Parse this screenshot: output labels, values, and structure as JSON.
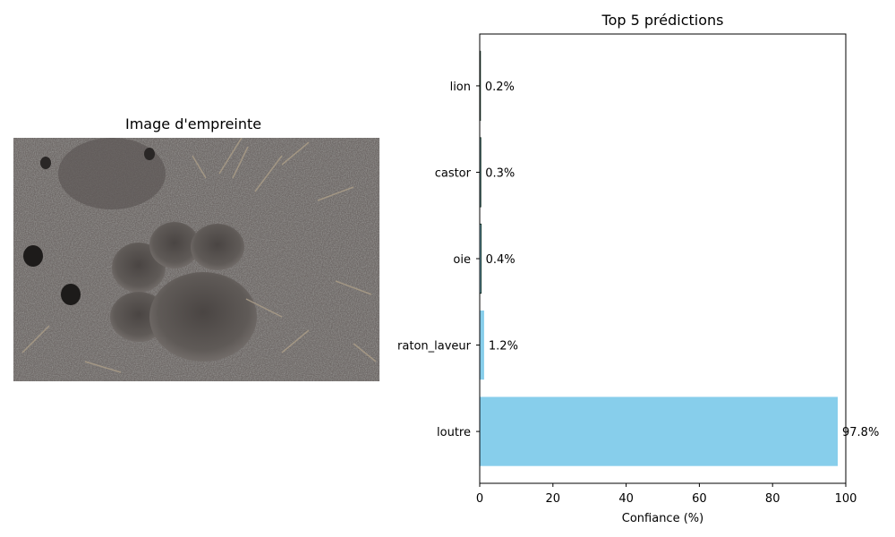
{
  "image_panel": {
    "title": "Image d'empreinte",
    "description_icon": "paw-print-photo"
  },
  "chart_data": {
    "type": "bar",
    "orientation": "horizontal",
    "title": "Top 5 prédictions",
    "xlabel": "Confiance (%)",
    "ylabel": "",
    "xlim": [
      0,
      100
    ],
    "xticks": [
      0,
      20,
      40,
      60,
      80,
      100
    ],
    "categories": [
      "loutre",
      "raton_laveur",
      "oie",
      "castor",
      "lion"
    ],
    "values": [
      97.8,
      1.2,
      0.4,
      0.3,
      0.2
    ],
    "value_labels": [
      "97.8%",
      "1.2%",
      "0.4%",
      "0.3%",
      "0.2%"
    ],
    "bar_color": "#87CEEB",
    "grid": false
  }
}
